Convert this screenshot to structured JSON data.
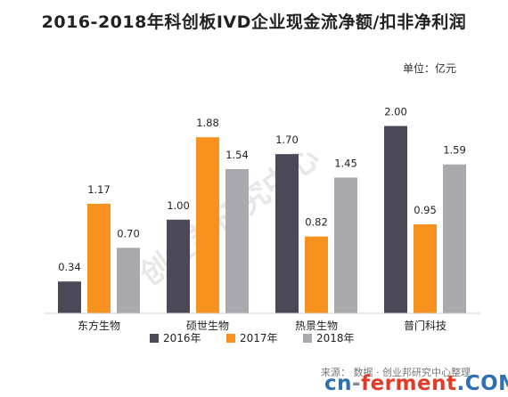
{
  "title": "2016-2018年科创板IVD企业现金流净额/扣非净利润",
  "unit": "单位：亿元",
  "watermark": "创业邦研究中心",
  "footer": "来源：   数据 · 创业邦研究中心整理",
  "logo": {
    "part1": "cn",
    "dash": "-",
    "part2": "ferment",
    "part3": ".COM"
  },
  "colors": {
    "s2016": "#4b4858",
    "s2017": "#f7921e",
    "s2018": "#aaa9ad",
    "axis": "#d0d0d0"
  },
  "chart_data": {
    "type": "bar",
    "title": "2016-2018年科创板IVD企业现金流净额/扣非净利润",
    "xlabel": "",
    "ylabel": "",
    "ylim": [
      0,
      2.3
    ],
    "grid": false,
    "legend": "bottom",
    "categories": [
      "东方生物",
      "硕世生物",
      "热景生物",
      "普门科技"
    ],
    "series": [
      {
        "name": "2016年",
        "values": [
          0.34,
          1.0,
          1.7,
          2.0
        ],
        "labels": [
          "0.34",
          "1.00",
          "1.70",
          "2.00"
        ]
      },
      {
        "name": "2017年",
        "values": [
          1.17,
          1.88,
          0.82,
          0.95
        ],
        "labels": [
          "1.17",
          "1.88",
          "0.82",
          "0.95"
        ]
      },
      {
        "name": "2018年",
        "values": [
          0.7,
          1.54,
          1.45,
          1.59
        ],
        "labels": [
          "0.70",
          "1.54",
          "1.45",
          "1.59"
        ]
      }
    ]
  }
}
